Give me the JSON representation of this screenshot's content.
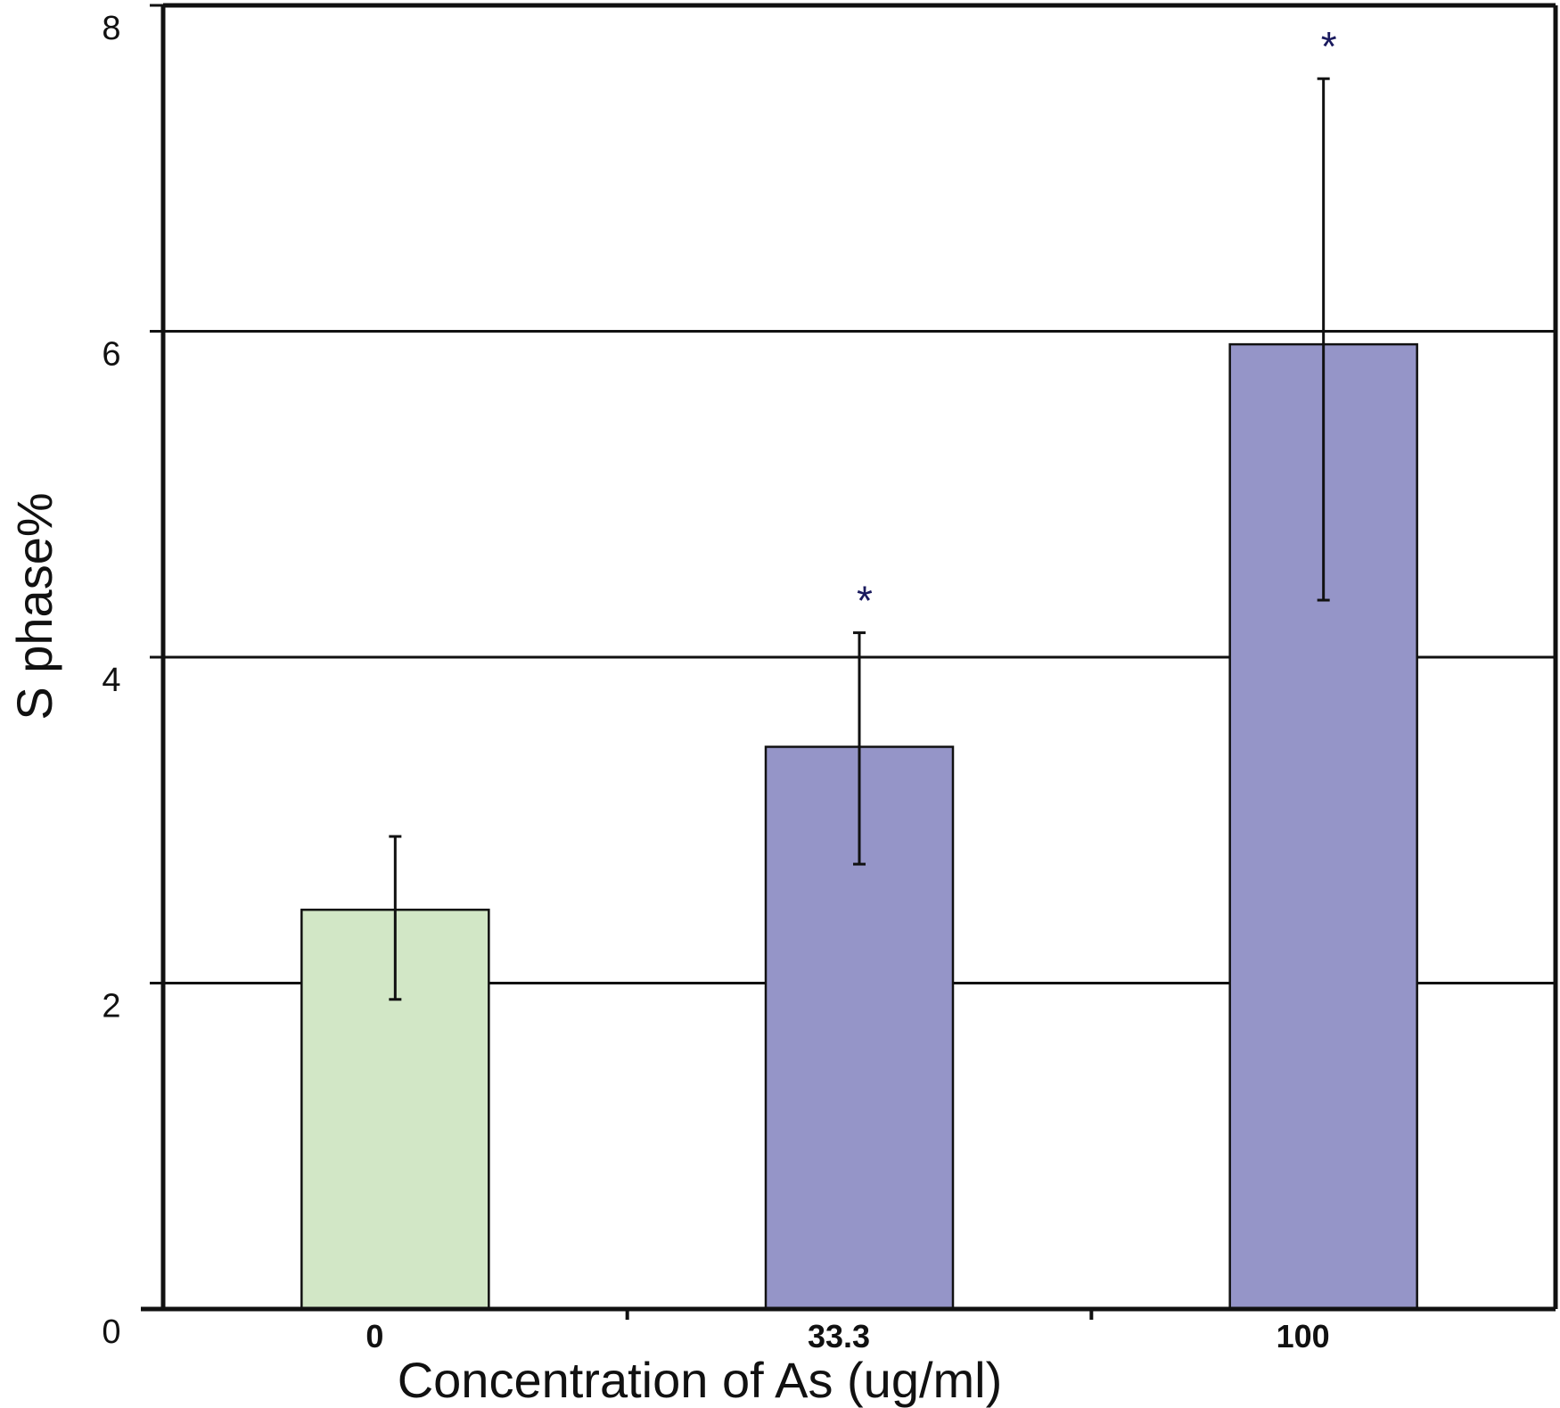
{
  "chart_data": {
    "type": "bar",
    "categories": [
      "0",
      "33.3",
      "100"
    ],
    "values": [
      2.45,
      3.45,
      5.92
    ],
    "error_upper": [
      2.9,
      4.15,
      7.55
    ],
    "error_lower": [
      1.9,
      2.73,
      4.35
    ],
    "significance": [
      "",
      "*",
      "*"
    ],
    "bar_colors": [
      "#d2e7c6",
      "#9595c8",
      "#9595c8"
    ],
    "significance_color": "#1a1a5e",
    "xlabel": "Concentration of As  (ug/ml)",
    "ylabel": "S phase%",
    "ylim": [
      0,
      8
    ],
    "yticks": [
      "0",
      "2",
      "4",
      "6",
      "8"
    ],
    "gridlines": [
      2,
      4,
      6
    ],
    "grid": true,
    "legend": "none"
  }
}
